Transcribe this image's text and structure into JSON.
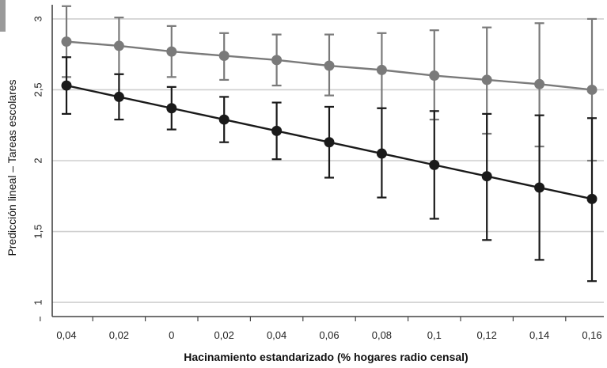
{
  "chart_data": {
    "type": "line",
    "title": "",
    "xlabel": "Hacinamiento estandarizado (% hogares radio censal)",
    "ylabel": "Predicción lineal – Tareas escolares",
    "categories": [
      "0,04",
      "0,02",
      "0",
      "0,02",
      "0,04",
      "0,06",
      "0,08",
      "0,1",
      "0,12",
      "0,14",
      "0,16"
    ],
    "ylim": [
      0.9,
      3.1
    ],
    "yticks": [
      {
        "value": 1,
        "label": "1"
      },
      {
        "value": 1.5,
        "label": "1,5"
      },
      {
        "value": 2,
        "label": "2"
      },
      {
        "value": 2.5,
        "label": "2,5"
      },
      {
        "value": 3,
        "label": "3"
      }
    ],
    "grid": "horizontal",
    "series": [
      {
        "color": "#7a7a7a",
        "values": [
          2.84,
          2.81,
          2.77,
          2.74,
          2.71,
          2.67,
          2.64,
          2.6,
          2.57,
          2.54,
          2.5
        ],
        "lower": [
          2.59,
          2.61,
          2.59,
          2.57,
          2.53,
          2.46,
          2.37,
          2.29,
          2.19,
          2.1,
          2.0
        ],
        "upper": [
          3.09,
          3.01,
          2.95,
          2.9,
          2.89,
          2.89,
          2.9,
          2.92,
          2.94,
          2.97,
          3.0
        ]
      },
      {
        "color": "#1a1a1a",
        "values": [
          2.53,
          2.45,
          2.37,
          2.29,
          2.21,
          2.13,
          2.05,
          1.97,
          1.89,
          1.81,
          1.73
        ],
        "lower": [
          2.33,
          2.29,
          2.22,
          2.13,
          2.01,
          1.88,
          1.74,
          1.59,
          1.44,
          1.3,
          1.15
        ],
        "upper": [
          2.73,
          2.61,
          2.52,
          2.45,
          2.41,
          2.38,
          2.37,
          2.35,
          2.33,
          2.32,
          2.3
        ]
      }
    ]
  }
}
